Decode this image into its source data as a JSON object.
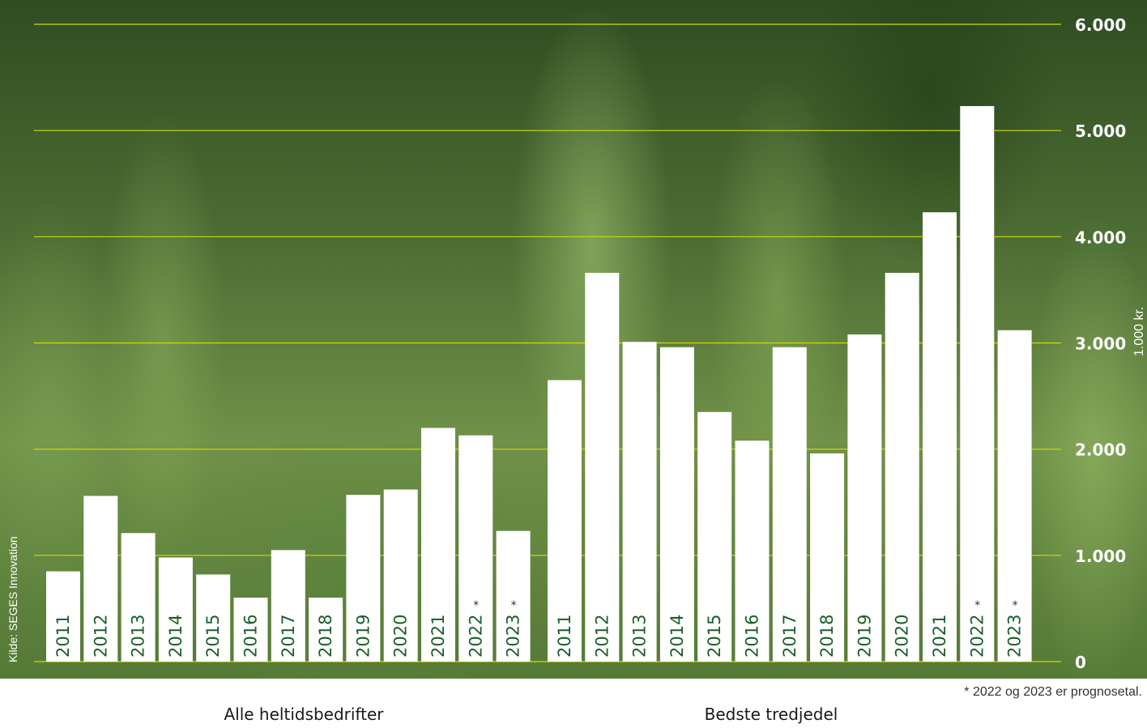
{
  "source": "Kilde: SEGES Innovation",
  "unit": "1.000 kr.",
  "footnote": "* 2022 og 2023 er prognosetal.",
  "colors": {
    "bar": "#ffffff",
    "grid": "#d8d800",
    "label": "#1b5e2a",
    "tick": "#ffffff"
  },
  "chart_data": {
    "type": "bar",
    "ylim": [
      0,
      6000
    ],
    "yticks": [
      "0",
      "1.000",
      "2.000",
      "3.000",
      "4.000",
      "5.000",
      "6.000"
    ],
    "ytick_values": [
      0,
      1000,
      2000,
      3000,
      4000,
      5000,
      6000
    ],
    "grid": true,
    "groups": [
      {
        "name": "Alle heltidsbedrifter",
        "categories": [
          "2011",
          "2012",
          "2013",
          "2014",
          "2015",
          "2016",
          "2017",
          "2018",
          "2019",
          "2020",
          "2021",
          "2022",
          "2023"
        ],
        "values": [
          850,
          1560,
          1210,
          980,
          820,
          310,
          1050,
          520,
          1570,
          1620,
          2200,
          2130,
          1230
        ],
        "marked": [
          false,
          false,
          false,
          false,
          false,
          false,
          false,
          false,
          false,
          false,
          false,
          true,
          true
        ]
      },
      {
        "name": "Bedste tredjedel",
        "categories": [
          "2011",
          "2012",
          "2013",
          "2014",
          "2015",
          "2016",
          "2017",
          "2018",
          "2019",
          "2020",
          "2021",
          "2022",
          "2023"
        ],
        "values": [
          2650,
          3660,
          3010,
          2960,
          2350,
          2080,
          2960,
          1960,
          3080,
          3660,
          4230,
          5230,
          3120
        ],
        "marked": [
          false,
          false,
          false,
          false,
          false,
          false,
          false,
          false,
          false,
          false,
          false,
          true,
          true
        ]
      }
    ]
  }
}
